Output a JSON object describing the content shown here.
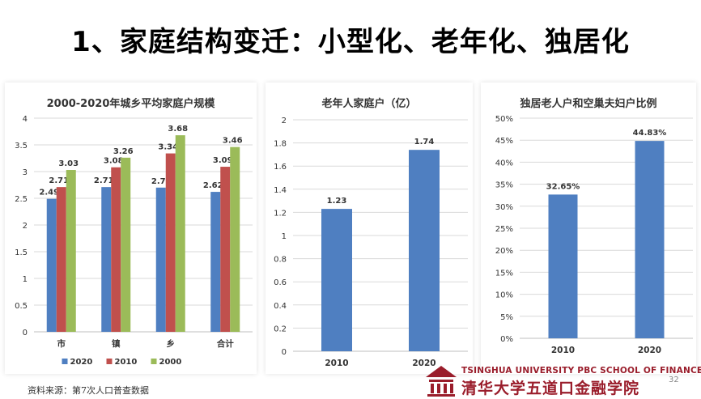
{
  "slide": {
    "title": "1、家庭结构变迁：小型化、老年化、独居化",
    "source_note": "资料来源：第7次人口普查数据",
    "page_number": "32",
    "logo_en": "TSINGHUA UNIVERSITY PBC SCHOOL OF FINANCE",
    "logo_cn": "清华大学五道口金融学院"
  },
  "colors": {
    "blue": "#4f7fc1",
    "red": "#c0504d",
    "green": "#9bbb59",
    "brand": "#9a1d2b"
  },
  "chart_data": [
    {
      "type": "bar",
      "title": "2000-2020年城乡平均家庭户规模",
      "categories": [
        "市",
        "镇",
        "乡",
        "合计"
      ],
      "series": [
        {
          "name": "2020",
          "values": [
            2.49,
            2.71,
            2.7,
            2.62
          ],
          "labels": [
            "2.49",
            "2.71",
            "2.7",
            "2.62"
          ]
        },
        {
          "name": "2010",
          "values": [
            2.71,
            3.08,
            3.34,
            3.09
          ],
          "labels": [
            "2.71",
            "3.08",
            "3.34",
            "3.09"
          ]
        },
        {
          "name": "2000",
          "values": [
            3.03,
            3.26,
            3.68,
            3.46
          ],
          "labels": [
            "3.03",
            "3.26",
            "3.68",
            "3.46"
          ]
        }
      ],
      "yticks": [
        "0",
        "0.5",
        "1",
        "1.5",
        "2",
        "2.5",
        "3",
        "3.5",
        "4"
      ],
      "ylim": [
        0,
        4
      ],
      "legend": "bottom",
      "grid": true
    },
    {
      "type": "bar",
      "title": "老年人家庭户（亿）",
      "categories": [
        "2010",
        "2020"
      ],
      "values": [
        1.23,
        1.74
      ],
      "labels": [
        "1.23",
        "1.74"
      ],
      "yticks": [
        "0",
        "0.2",
        "0.4",
        "0.6",
        "0.8",
        "1",
        "1.2",
        "1.4",
        "1.6",
        "1.8",
        "2"
      ],
      "ylim": [
        0,
        2
      ],
      "grid": true
    },
    {
      "type": "bar",
      "title": "独居老人户和空巢夫妇户比例",
      "categories": [
        "2010",
        "2020"
      ],
      "values": [
        32.65,
        44.83
      ],
      "labels": [
        "32.65%",
        "44.83%"
      ],
      "yticks": [
        "0%",
        "5%",
        "10%",
        "15%",
        "20%",
        "25%",
        "30%",
        "35%",
        "40%",
        "45%",
        "50%"
      ],
      "ylim": [
        0,
        50
      ],
      "grid": true
    }
  ]
}
